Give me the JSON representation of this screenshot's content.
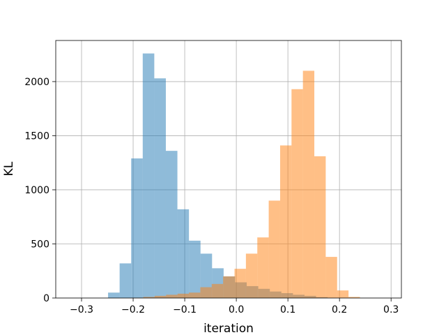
{
  "chart_data": {
    "type": "histogram",
    "title": "",
    "xlabel": "iteration",
    "ylabel": "KL",
    "xlim": [
      -0.35,
      0.32
    ],
    "ylim": [
      0,
      2380
    ],
    "xticks": [
      -0.3,
      -0.2,
      -0.1,
      0.0,
      0.1,
      0.2,
      0.3
    ],
    "xtick_labels": [
      "−0.3",
      "−0.2",
      "−0.1",
      "0.0",
      "0.1",
      "0.2",
      "0.3"
    ],
    "yticks": [
      0,
      500,
      1000,
      1500,
      2000
    ],
    "ytick_labels": [
      "0",
      "500",
      "1000",
      "1500",
      "2000"
    ],
    "grid": true,
    "legend": "none",
    "series": [
      {
        "color": "#1f77b4",
        "alpha": 0.5,
        "bin_edges": [
          -0.2486,
          -0.2262,
          -0.2038,
          -0.1814,
          -0.159,
          -0.1366,
          -0.1142,
          -0.0918,
          -0.0694,
          -0.047,
          -0.0246,
          -0.0022,
          0.0202,
          0.0426,
          0.065,
          0.0874,
          0.1098,
          0.1322,
          0.1546,
          0.177
        ],
        "counts": [
          50,
          320,
          1290,
          2260,
          2030,
          1360,
          820,
          530,
          410,
          275,
          200,
          145,
          110,
          85,
          60,
          45,
          30,
          20,
          8
        ]
      },
      {
        "color": "#ff7f0e",
        "alpha": 0.5,
        "bin_edges": [
          -0.2024,
          -0.1803,
          -0.1582,
          -0.1361,
          -0.114,
          -0.0919,
          -0.0698,
          -0.0477,
          -0.0256,
          -0.0035,
          0.0186,
          0.0407,
          0.0628,
          0.0849,
          0.107,
          0.1291,
          0.1512,
          0.1733,
          0.1954,
          0.2175,
          0.2396
        ],
        "counts": [
          2,
          10,
          20,
          30,
          40,
          50,
          100,
          130,
          200,
          270,
          410,
          560,
          900,
          1410,
          1930,
          2100,
          1310,
          380,
          70,
          10
        ]
      }
    ]
  }
}
